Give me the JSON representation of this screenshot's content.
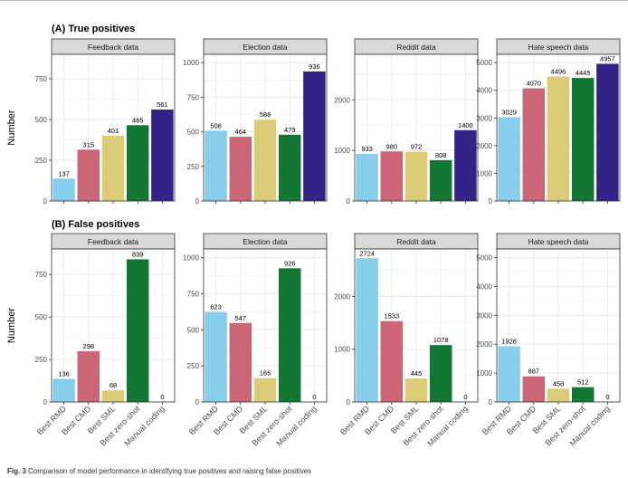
{
  "figure": {
    "caption_label": "Fig. 3",
    "caption_text": "Comparison of model performance in identifying true positives and raising false positives",
    "ylabel": "Number",
    "categories": [
      "Best RMD",
      "Best CMD",
      "Best SML",
      "Best zero-shot",
      "Manual coding"
    ],
    "colors": [
      "#87ceeb",
      "#cc6677",
      "#ddcc77",
      "#117733",
      "#332288"
    ],
    "panel_bg": "#ffffff",
    "grid_color": "#ebebeb",
    "strip_bg": "#d9d9d9"
  },
  "chart_data": [
    {
      "type": "bar",
      "row_title": "(A) True positives",
      "title": "Feedback data",
      "categories": [
        "Best RMD",
        "Best CMD",
        "Best SML",
        "Best zero-shot",
        "Manual coding"
      ],
      "values": [
        137,
        315,
        401,
        465,
        561
      ],
      "ylabel": "Number",
      "ylim": [
        0,
        900
      ],
      "yticks": [
        0,
        250,
        500,
        750
      ],
      "grid": true
    },
    {
      "type": "bar",
      "title": "Election data",
      "categories": [
        "Best RMD",
        "Best CMD",
        "Best SML",
        "Best zero-shot",
        "Manual coding"
      ],
      "values": [
        508,
        464,
        588,
        479,
        936
      ],
      "ylim": [
        0,
        1060
      ],
      "yticks": [
        0,
        250,
        500,
        750,
        1000
      ],
      "grid": true
    },
    {
      "type": "bar",
      "title": "Reddit data",
      "categories": [
        "Best RMD",
        "Best CMD",
        "Best SML",
        "Best zero-shot",
        "Manual coding"
      ],
      "values": [
        933,
        980,
        972,
        808,
        1400
      ],
      "ylim": [
        0,
        2900
      ],
      "yticks": [
        0,
        1000,
        2000
      ],
      "grid": true
    },
    {
      "type": "bar",
      "title": "Hate speech data",
      "categories": [
        "Best RMD",
        "Best CMD",
        "Best SML",
        "Best zero-shot",
        "Manual coding"
      ],
      "values": [
        3029,
        4070,
        4496,
        4445,
        4957
      ],
      "ylim": [
        0,
        5300
      ],
      "yticks": [
        0,
        1000,
        2000,
        3000,
        4000,
        5000
      ],
      "grid": true
    },
    {
      "type": "bar",
      "row_title": "(B) False positives",
      "title": "Feedback data",
      "categories": [
        "Best RMD",
        "Best CMD",
        "Best SML",
        "Best zero-shot",
        "Manual coding"
      ],
      "values": [
        136,
        298,
        68,
        839,
        0
      ],
      "ylabel": "Number",
      "ylim": [
        0,
        900
      ],
      "yticks": [
        0,
        250,
        500,
        750
      ],
      "grid": true
    },
    {
      "type": "bar",
      "title": "Election data",
      "categories": [
        "Best RMD",
        "Best CMD",
        "Best SML",
        "Best zero-shot",
        "Manual coding"
      ],
      "values": [
        623,
        547,
        165,
        926,
        0
      ],
      "ylim": [
        0,
        1060
      ],
      "yticks": [
        0,
        250,
        500,
        750,
        1000
      ],
      "grid": true
    },
    {
      "type": "bar",
      "title": "Reddit data",
      "categories": [
        "Best RMD",
        "Best CMD",
        "Best SML",
        "Best zero-shot",
        "Manual coding"
      ],
      "values": [
        2724,
        1533,
        445,
        1078,
        0
      ],
      "ylim": [
        0,
        2900
      ],
      "yticks": [
        0,
        1000,
        2000
      ],
      "grid": true
    },
    {
      "type": "bar",
      "title": "Hate speech data",
      "categories": [
        "Best RMD",
        "Best CMD",
        "Best SML",
        "Best zero-shot",
        "Manual coding"
      ],
      "values": [
        1928,
        887,
        458,
        512,
        0
      ],
      "ylim": [
        0,
        5300
      ],
      "yticks": [
        0,
        1000,
        2000,
        3000,
        4000,
        5000
      ],
      "grid": true
    }
  ]
}
